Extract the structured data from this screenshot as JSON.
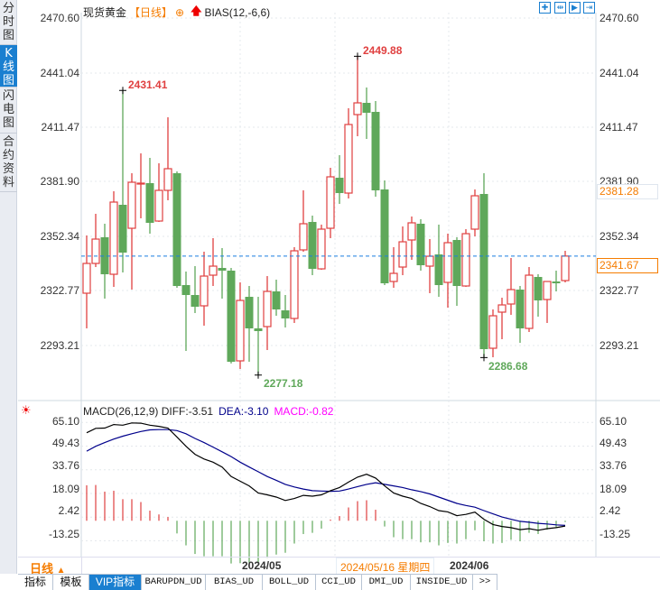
{
  "sidebar": {
    "tabs": [
      {
        "label": "分时图"
      },
      {
        "label": "K线图",
        "selected": true
      },
      {
        "label": "闪电图"
      },
      {
        "label": "合约资料"
      }
    ]
  },
  "header": {
    "instrument": "现货黄金",
    "period": "【日线】",
    "indicator": "BIAS(12,-6,6)",
    "icons": [
      "crosshair-add-icon",
      "red-up-arrow-icon"
    ]
  },
  "toolbar": {
    "icons": [
      "crosshair-icon",
      "zoom-range-icon",
      "play-range-icon",
      "exit-icon"
    ]
  },
  "price_axis": {
    "ticks": [
      "2470.60",
      "2441.04",
      "2411.47",
      "2381.90",
      "2352.34",
      "2322.77",
      "2293.21"
    ],
    "right_highlight": "2381.28",
    "last_price": "2341.67"
  },
  "annotations": {
    "high1": "2431.41",
    "high2": "2449.88",
    "low1": "2277.18",
    "low2": "2286.68"
  },
  "macd": {
    "title": "MACD(26,12,9)",
    "diff": "DIFF:-3.51",
    "dea": "DEA:-3.10",
    "macd": "MACD:-0.82",
    "ticks": [
      "65.10",
      "49.43",
      "33.76",
      "18.09",
      "2.42",
      "-13.25"
    ]
  },
  "date_axis": {
    "period_label": "日线",
    "labels": [
      "2024/05",
      "2024/06"
    ],
    "cursor_date": "2024/05/16 星期四"
  },
  "bottom_tabs": [
    {
      "label": "指标"
    },
    {
      "label": "模板"
    },
    {
      "label": "VIP指标",
      "selected": true
    },
    {
      "label": "BARUPDN_UD"
    },
    {
      "label": "BIAS_UD"
    },
    {
      "label": "BOLL_UD"
    },
    {
      "label": "CCI_UD"
    },
    {
      "label": "DMI_UD"
    },
    {
      "label": "INSIDE_UD"
    },
    {
      "label": ">>"
    }
  ],
  "colors": {
    "up": "#e04040",
    "down": "#5fa85a",
    "diff": "#000000",
    "dea": "#00008b",
    "macd": "#ff00ff",
    "accent": "#1a7fd0",
    "last_price_line": "#1a7fe0",
    "orange": "#f57c00"
  },
  "chart_data": {
    "type": "candlestick",
    "price_range": [
      2270,
      2475
    ],
    "candles_ohlc": [
      [
        2321.55,
        2352.82,
        2302.49,
        2337.68
      ],
      [
        2337.68,
        2364.55,
        2335.72,
        2350.87
      ],
      [
        2351.85,
        2359.18,
        2318.62,
        2331.81
      ],
      [
        2331.81,
        2376.77,
        2324.97,
        2370.91
      ],
      [
        2369.44,
        2431.41,
        2332.79,
        2343.54
      ],
      [
        2356.73,
        2386.54,
        2323.5,
        2381.66
      ],
      [
        2380.68,
        2397.29,
        2362.11,
        2381.17
      ],
      [
        2381.17,
        2394.85,
        2353.8,
        2359.67
      ],
      [
        2360.64,
        2391.92,
        2360.15,
        2377.26
      ],
      [
        2377.26,
        2416.84,
        2371.88,
        2388.99
      ],
      [
        2386.54,
        2387.52,
        2324.48,
        2325.46
      ],
      [
        2325.95,
        2333.28,
        2290.27,
        2320.57
      ],
      [
        2320.57,
        2336.21,
        2310.8,
        2314.22
      ],
      [
        2314.71,
        2344.03,
        2303.96,
        2330.83
      ],
      [
        2331.32,
        2351.36,
        2325.46,
        2336.21
      ],
      [
        2335.23,
        2345.98,
        2318.62,
        2333.77
      ],
      [
        2333.77,
        2335.23,
        2283.5,
        2284.41
      ],
      [
        2284.9,
        2327.41,
        2280.5,
        2317.64
      ],
      [
        2319.59,
        2325.46,
        2284.41,
        2302.49
      ],
      [
        2302.49,
        2319.59,
        2277.18,
        2301.02
      ],
      [
        2303.47,
        2330.83,
        2290.76,
        2322.53
      ],
      [
        2322.53,
        2328.88,
        2309.33,
        2312.75
      ],
      [
        2312.26,
        2320.57,
        2302.98,
        2307.87
      ],
      [
        2307.87,
        2346.47,
        2305.42,
        2344.52
      ],
      [
        2345.01,
        2377.26,
        2344.03,
        2359.18
      ],
      [
        2360.15,
        2363.58,
        2331.32,
        2334.74
      ],
      [
        2334.74,
        2358.69,
        2334.25,
        2356.25
      ],
      [
        2356.73,
        2389.48,
        2351.36,
        2384.59
      ],
      [
        2384.1,
        2396.32,
        2369.93,
        2375.79
      ],
      [
        2375.79,
        2421.73,
        2372.86,
        2412.93
      ],
      [
        2418.31,
        2449.88,
        2406.58,
        2424.66
      ],
      [
        2424.66,
        2432.97,
        2405.11,
        2419.28
      ],
      [
        2419.77,
        2425.64,
        2373.84,
        2377.26
      ],
      [
        2377.75,
        2382.63,
        2325.95,
        2326.92
      ],
      [
        2327.9,
        2346.47,
        2324.48,
        2332.3
      ],
      [
        2335.72,
        2357.71,
        2331.32,
        2349.4
      ],
      [
        2350.38,
        2363.09,
        2339.63,
        2359.67
      ],
      [
        2359.18,
        2361.62,
        2333.77,
        2336.7
      ],
      [
        2336.21,
        2350.87,
        2321.55,
        2341.58
      ],
      [
        2342.56,
        2358.69,
        2319.59,
        2325.95
      ],
      [
        2327.41,
        2353.8,
        2313.73,
        2348.92
      ],
      [
        2350.38,
        2351.85,
        2314.71,
        2325.46
      ],
      [
        2325.46,
        2356.25,
        2325.0,
        2353.8
      ],
      [
        2356.25,
        2377.75,
        2352.34,
        2374.33
      ],
      [
        2375.3,
        2386.54,
        2286.68,
        2291.25
      ],
      [
        2291.74,
        2312.75,
        2286.85,
        2309.33
      ],
      [
        2311.29,
        2319.11,
        2296.63,
        2315.2
      ],
      [
        2315.69,
        2340.61,
        2309.82,
        2323.5
      ],
      [
        2323.5,
        2325.46,
        2294.67,
        2302.49
      ],
      [
        2302.49,
        2335.72,
        2300.54,
        2331.32
      ],
      [
        2330.35,
        2331.81,
        2308.84,
        2317.64
      ],
      [
        2318.13,
        2327.9,
        2305.42,
        2327.9
      ],
      [
        2327.9,
        2333.77,
        2322.53,
        2326.92
      ],
      [
        2328.39,
        2344.52,
        2327.41,
        2341.67
      ]
    ],
    "last_price": 2341.67,
    "macd_range": [
      -20,
      70
    ],
    "diff": [
      58.3,
      61.2,
      61.4,
      63.7,
      63.3,
      64.8,
      64.6,
      63.3,
      62.5,
      61.4,
      55.5,
      49.3,
      44.0,
      40.9,
      38.8,
      35.6,
      29.3,
      26.2,
      23.1,
      18.4,
      17.2,
      15.7,
      13.4,
      14.7,
      16.8,
      16.3,
      17.2,
      19.9,
      22.0,
      25.6,
      28.9,
      30.8,
      28.3,
      23.1,
      18.4,
      16.3,
      14.7,
      11.5,
      9.4,
      6.7,
      5.9,
      3.4,
      4.2,
      5.7,
      1.0,
      -2.5,
      -3.8,
      -4.6,
      -5.9,
      -5.2,
      -6.3,
      -5.2,
      -4.6,
      -3.51
    ],
    "dea": [
      46.1,
      49.3,
      51.8,
      54.1,
      56.0,
      57.6,
      59.1,
      60.2,
      60.4,
      60.4,
      59.7,
      57.6,
      54.5,
      51.8,
      48.8,
      45.7,
      42.5,
      38.8,
      35.6,
      32.5,
      29.3,
      26.8,
      24.1,
      22.4,
      21.0,
      19.9,
      19.7,
      19.5,
      19.7,
      21.0,
      22.6,
      24.1,
      25.2,
      24.1,
      23.1,
      22.0,
      20.5,
      19.3,
      17.8,
      15.7,
      13.6,
      11.5,
      10.1,
      9.0,
      6.7,
      4.6,
      2.5,
      1.0,
      -0.4,
      -1.0,
      -1.7,
      -2.1,
      -2.7,
      -3.1
    ],
    "macd_hist": [
      23.5,
      23.7,
      19.3,
      19.9,
      14.3,
      14.3,
      12.4,
      6.7,
      4.2,
      2.5,
      -8.4,
      -16.3,
      -22.0,
      -23.5,
      -23.5,
      -23.5,
      -28.3,
      -28.1,
      -27.9,
      -28.3,
      -24.5,
      -22.4,
      -21.2,
      -15.1,
      -8.8,
      -8.0,
      -5.2,
      0.8,
      3.1,
      8.8,
      13.0,
      13.6,
      7.3,
      -3.8,
      -10.9,
      -12.2,
      -12.2,
      -14.3,
      -14.3,
      -16.3,
      -14.7,
      -15.1,
      -12.2,
      -6.3,
      -13.6,
      -15.1,
      -14.7,
      -12.6,
      -13.6,
      -8.0,
      -8.8,
      -5.9,
      -4.6,
      -0.82
    ],
    "grid": true
  }
}
